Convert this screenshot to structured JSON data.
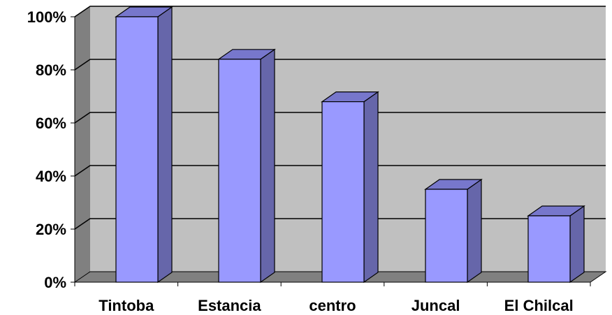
{
  "chart_data": {
    "type": "bar",
    "title": "",
    "xlabel": "",
    "ylabel": "",
    "categories": [
      "Tintoba",
      "Estancia",
      "centro",
      "Juncal",
      "El Chilcal"
    ],
    "values": [
      100,
      84,
      68,
      35,
      25
    ],
    "ylim": [
      0,
      100
    ],
    "ytick_values": [
      0,
      20,
      40,
      60,
      80,
      100
    ],
    "ytick_labels": [
      "0%",
      "20%",
      "40%",
      "60%",
      "80%",
      "100%"
    ],
    "grid": true,
    "legend": "none",
    "style": "3d-column",
    "colors": {
      "bar_front": "#9999ff",
      "bar_side": "#6666aa",
      "bar_top": "#7777cc",
      "plot_back_wall": "#c0c0c0",
      "plot_side_wall": "#808080",
      "plot_floor": "#808080",
      "gridline": "#000000"
    }
  }
}
